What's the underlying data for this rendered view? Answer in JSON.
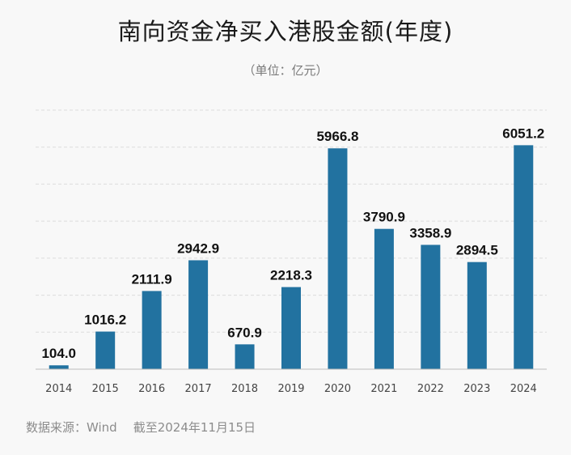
{
  "chart_data": {
    "type": "bar",
    "title": "南向资金净买入港股金额(年度)",
    "subtitle": "（单位：亿元）",
    "categories": [
      "2014",
      "2015",
      "2016",
      "2017",
      "2018",
      "2019",
      "2020",
      "2021",
      "2022",
      "2023",
      "2024"
    ],
    "values": [
      104.0,
      1016.2,
      2111.9,
      2942.9,
      670.9,
      2218.3,
      5966.8,
      3790.9,
      3358.9,
      2894.5,
      6051.2
    ],
    "value_labels": [
      "104.0",
      "1016.2",
      "2111.9",
      "2942.9",
      "670.9",
      "2218.3",
      "5966.8",
      "3790.9",
      "3358.9",
      "2894.5",
      "6051.2"
    ],
    "ylim": [
      0,
      7000
    ],
    "grid": true,
    "bar_color": "#2272a0"
  },
  "footer": {
    "source": "数据来源：Wind",
    "date": "截至2024年11月15日"
  }
}
